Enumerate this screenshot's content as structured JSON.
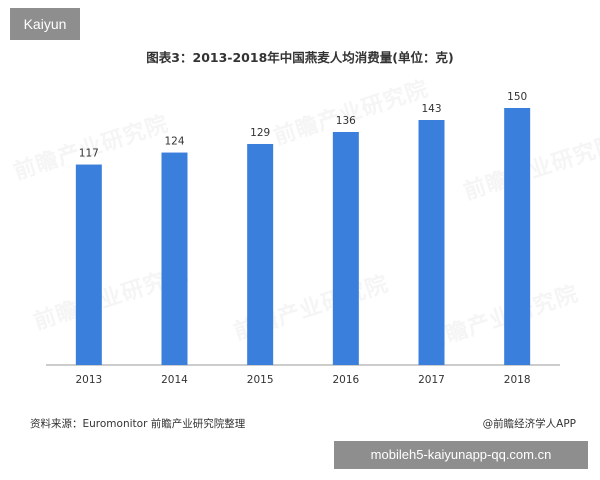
{
  "brand_badge": "Kaiyun",
  "url_badge": "mobileh5-kaiyunapp-qq.com.cn",
  "watermark_text": "前瞻产业研究院",
  "source_note": "资料来源：Euromonitor 前瞻产业研究院整理",
  "app_credit": "@前瞻经济学人APP",
  "colors": {
    "bar": "#3b7fdc",
    "axis": "#999999",
    "text": "#333333"
  },
  "chart_data": {
    "type": "bar",
    "title": "图表3：2013-2018年中国燕麦人均消费量(单位：克)",
    "categories": [
      "2013",
      "2014",
      "2015",
      "2016",
      "2017",
      "2018"
    ],
    "values": [
      117,
      124,
      129,
      136,
      143,
      150
    ],
    "ylim": [
      0,
      150
    ],
    "grid": false,
    "legend": "none",
    "data_labels": true
  }
}
